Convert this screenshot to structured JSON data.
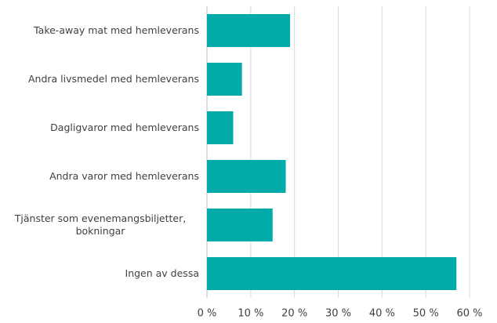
{
  "chart_data": {
    "type": "bar",
    "orientation": "horizontal",
    "categories": [
      "Take-away mat med hemleverans",
      "Andra livsmedel med hemleverans",
      "Dagligvaror med hemleverans",
      "Andra varor med hemleverans",
      "Tjänster som evenemangsbiljetter, bokningar",
      "Ingen av dessa"
    ],
    "values": [
      19,
      8,
      6,
      18,
      15,
      57
    ],
    "color": "#00abaa",
    "xlim": [
      0,
      60
    ],
    "xticks": [
      {
        "value": 0,
        "label": "0 %"
      },
      {
        "value": 10,
        "label": "10 %"
      },
      {
        "value": 20,
        "label": "20 %"
      },
      {
        "value": 30,
        "label": "30 %"
      },
      {
        "value": 40,
        "label": "40 %"
      },
      {
        "value": 50,
        "label": "50 %"
      },
      {
        "value": 60,
        "label": "60 %"
      }
    ],
    "grid": true
  }
}
